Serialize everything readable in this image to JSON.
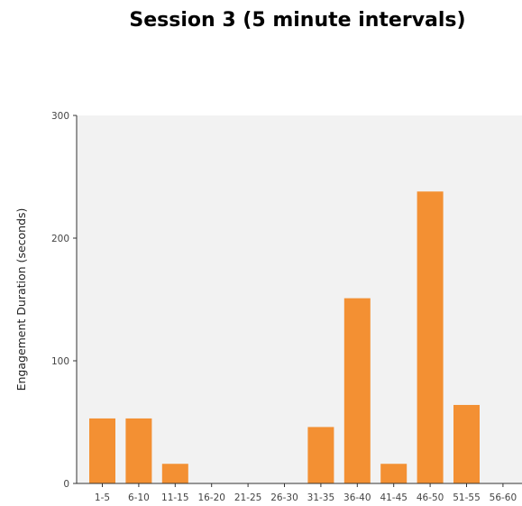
{
  "chart_data": {
    "type": "bar",
    "title": "Session 3 (5 minute intervals)",
    "xlabel": "",
    "ylabel": "Engagement Duration (seconds)",
    "categories": [
      "1-5",
      "6-10",
      "11-15",
      "16-20",
      "21-25",
      "26-30",
      "31-35",
      "36-40",
      "41-45",
      "46-50",
      "51-55",
      "56-60"
    ],
    "values": [
      53,
      53,
      16,
      0,
      0,
      0,
      46,
      151,
      16,
      238,
      64,
      0
    ],
    "ylim": [
      0,
      300
    ],
    "yticks": [
      0,
      100,
      200,
      300
    ],
    "grid": false,
    "colors": {
      "bar": "#f39033",
      "plot_background": "#f2f2f2",
      "axis": "#333333"
    }
  }
}
